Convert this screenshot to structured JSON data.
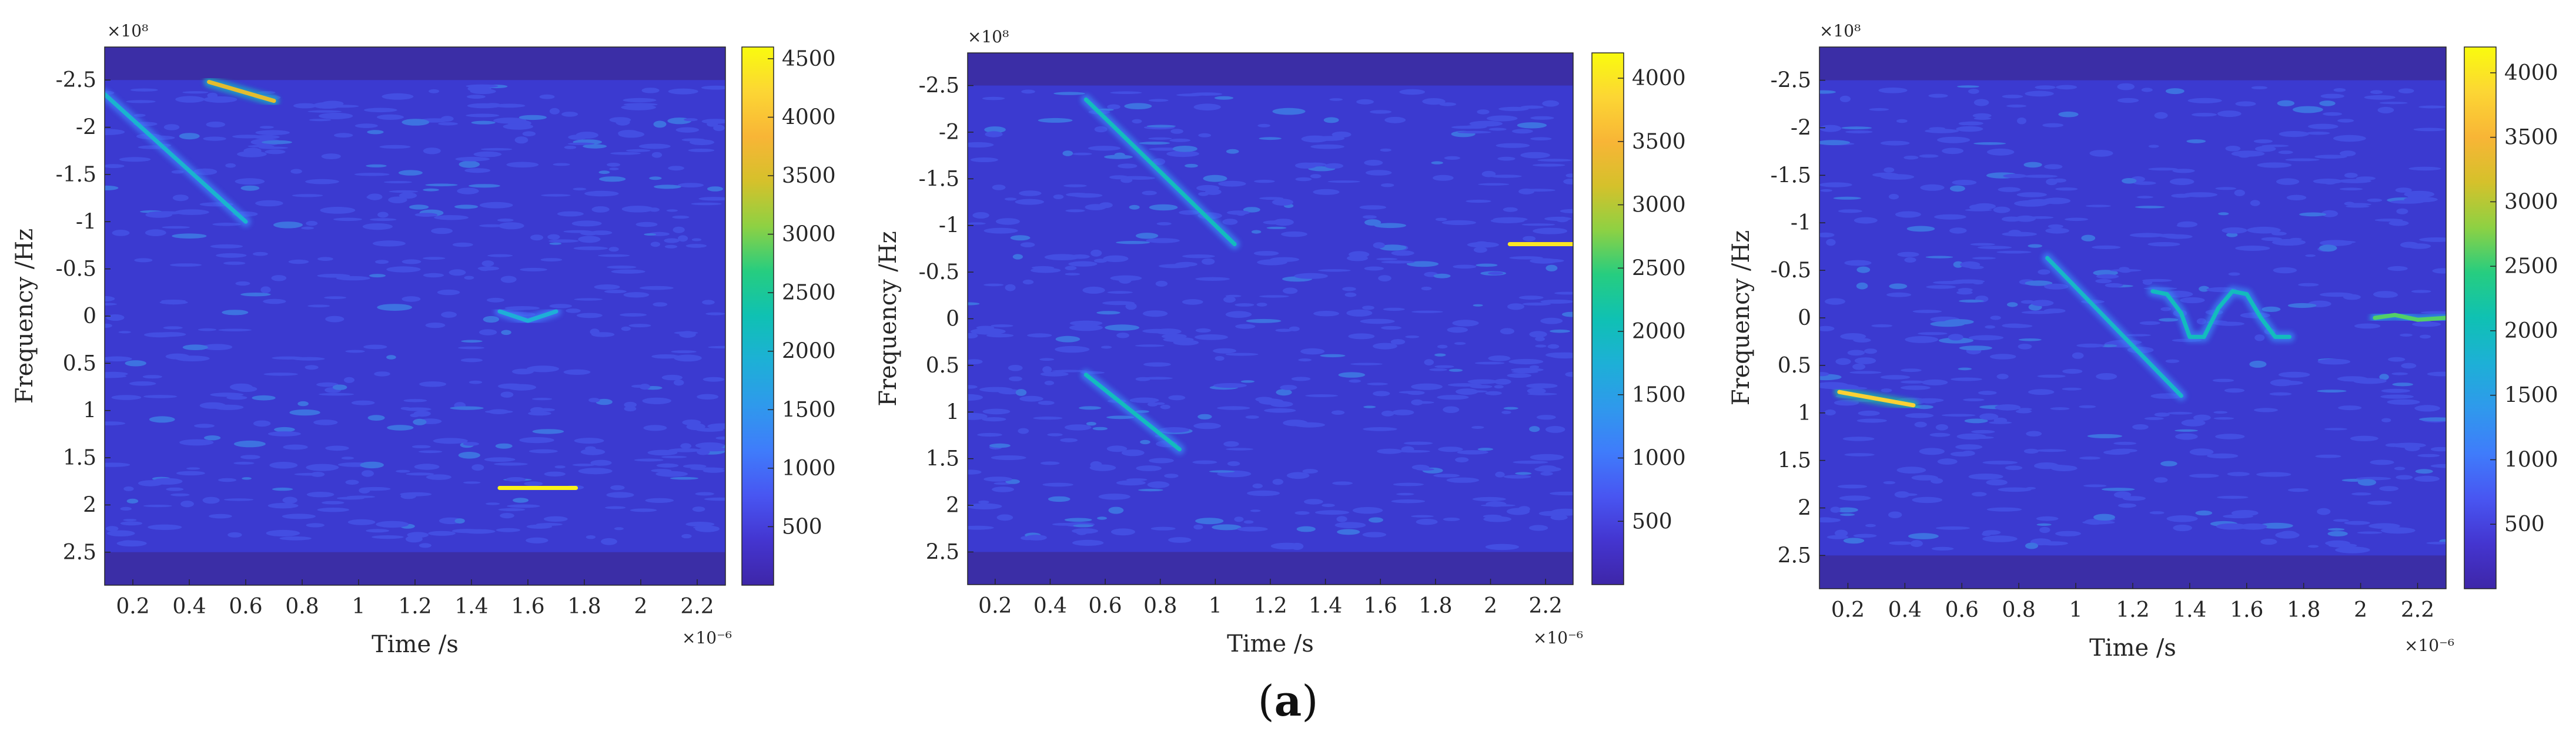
{
  "caption": {
    "open": "(",
    "letter": "a",
    "close": ")"
  },
  "colors": {
    "dark": "#3b2ea6",
    "background": "#3b3ad0",
    "texture": "#4a5ff2",
    "accent": "#3fa0f0",
    "high": "#fbee2a"
  },
  "colormap": [
    "#3e26a8",
    "#4435d0",
    "#4856f2",
    "#3f7cfb",
    "#2f99ec",
    "#1db0d6",
    "#0fc1b3",
    "#26cd80",
    "#8ed143",
    "#d5c12b",
    "#f8b536",
    "#fcd634",
    "#f9fb0e"
  ],
  "chart_data": [
    {
      "type": "heatmap",
      "title": "",
      "xlabel": "Time /s",
      "ylabel": "Frequency /Hz",
      "x_exponent": "×10⁻⁶",
      "y_exponent": "×10⁸",
      "xlim": [
        0.1,
        2.3
      ],
      "ylim": [
        -2.85,
        2.85
      ],
      "y_reversed": true,
      "x_ticks": [
        0.2,
        0.4,
        0.6,
        0.8,
        1,
        1.2,
        1.4,
        1.6,
        1.8,
        2,
        2.2
      ],
      "y_ticks": [
        -2.5,
        -2,
        -1.5,
        -1,
        -0.5,
        0,
        0.5,
        1,
        1.5,
        2,
        2.5
      ],
      "colorbar": {
        "min": 0,
        "max": 4600,
        "ticks": [
          500,
          1000,
          1500,
          2000,
          2500,
          3000,
          3500,
          4000,
          4500
        ]
      },
      "features": [
        {
          "name": "chirp-down-1",
          "kind": "line",
          "points": [
            [
              0.1,
              -2.35
            ],
            [
              0.6,
              -1.0
            ]
          ],
          "intensity": 2000
        },
        {
          "name": "chirp-short-1",
          "kind": "line",
          "points": [
            [
              0.47,
              -2.48
            ],
            [
              0.7,
              -2.28
            ]
          ],
          "intensity": 3600
        },
        {
          "name": "tone-bump-1",
          "kind": "polyline",
          "points": [
            [
              1.5,
              -0.05
            ],
            [
              1.55,
              0.0
            ],
            [
              1.6,
              0.05
            ],
            [
              1.65,
              0.0
            ],
            [
              1.7,
              -0.05
            ]
          ],
          "intensity": 1900
        },
        {
          "name": "tone-1",
          "kind": "line",
          "points": [
            [
              1.5,
              1.82
            ],
            [
              1.77,
              1.82
            ]
          ],
          "intensity": 4500
        }
      ]
    },
    {
      "type": "heatmap",
      "title": "",
      "xlabel": "Time /s",
      "ylabel": "Frequency /Hz",
      "x_exponent": "×10⁻⁶",
      "y_exponent": "×10⁸",
      "xlim": [
        0.1,
        2.3
      ],
      "ylim": [
        -2.85,
        2.85
      ],
      "y_reversed": true,
      "x_ticks": [
        0.2,
        0.4,
        0.6,
        0.8,
        1,
        1.2,
        1.4,
        1.6,
        1.8,
        2,
        2.2
      ],
      "y_ticks": [
        -2.5,
        -2,
        -1.5,
        -1,
        -0.5,
        0,
        0.5,
        1,
        1.5,
        2,
        2.5
      ],
      "colorbar": {
        "min": 0,
        "max": 4200,
        "ticks": [
          500,
          1000,
          1500,
          2000,
          2500,
          3000,
          3500,
          4000
        ]
      },
      "features": [
        {
          "name": "chirp-down-1",
          "kind": "line",
          "points": [
            [
              0.53,
              -2.35
            ],
            [
              1.07,
              -0.8
            ]
          ],
          "intensity": 2000
        },
        {
          "name": "chirp-down-2",
          "kind": "line",
          "points": [
            [
              0.53,
              0.6
            ],
            [
              0.87,
              1.4
            ]
          ],
          "intensity": 2000
        },
        {
          "name": "tone-1",
          "kind": "line",
          "points": [
            [
              2.07,
              -0.8
            ],
            [
              2.3,
              -0.8
            ]
          ],
          "intensity": 4000
        }
      ]
    },
    {
      "type": "heatmap",
      "title": "",
      "xlabel": "Time /s",
      "ylabel": "Frequency /Hz",
      "x_exponent": "×10⁻⁶",
      "y_exponent": "×10⁸",
      "xlim": [
        0.1,
        2.3
      ],
      "ylim": [
        -2.85,
        2.85
      ],
      "y_reversed": true,
      "x_ticks": [
        0.2,
        0.4,
        0.6,
        0.8,
        1,
        1.2,
        1.4,
        1.6,
        1.8,
        2,
        2.2
      ],
      "y_ticks": [
        -2.5,
        -2,
        -1.5,
        -1,
        -0.5,
        0,
        0.5,
        1,
        1.5,
        2,
        2.5
      ],
      "colorbar": {
        "min": 0,
        "max": 4200,
        "ticks": [
          500,
          1000,
          1500,
          2000,
          2500,
          3000,
          3500,
          4000
        ]
      },
      "features": [
        {
          "name": "chirp-short-1",
          "kind": "line",
          "points": [
            [
              0.17,
              0.78
            ],
            [
              0.43,
              0.92
            ]
          ],
          "intensity": 3800
        },
        {
          "name": "chirp-down-1",
          "kind": "line",
          "points": [
            [
              0.9,
              -0.63
            ],
            [
              1.37,
              0.82
            ]
          ],
          "intensity": 1900
        },
        {
          "name": "sinusoid-1",
          "kind": "polyline",
          "points": [
            [
              1.27,
              -0.28
            ],
            [
              1.32,
              -0.25
            ],
            [
              1.37,
              -0.05
            ],
            [
              1.4,
              0.2
            ],
            [
              1.45,
              0.2
            ],
            [
              1.5,
              -0.1
            ],
            [
              1.55,
              -0.28
            ],
            [
              1.6,
              -0.25
            ],
            [
              1.65,
              0.0
            ],
            [
              1.7,
              0.2
            ],
            [
              1.75,
              0.2
            ]
          ],
          "intensity": 2000
        },
        {
          "name": "tone-1",
          "kind": "polyline",
          "points": [
            [
              2.05,
              0.0
            ],
            [
              2.12,
              -0.03
            ],
            [
              2.2,
              0.02
            ],
            [
              2.3,
              0.0
            ]
          ],
          "intensity": 2600
        }
      ]
    }
  ]
}
